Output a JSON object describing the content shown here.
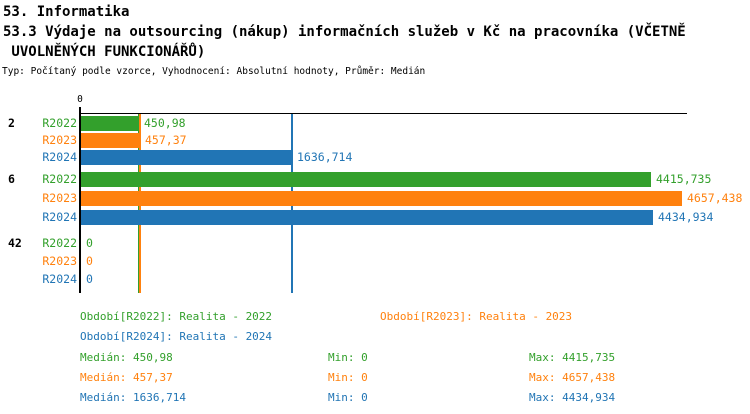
{
  "header": {
    "title_line1": "53. Informatika",
    "title_line2": "53.3 Výdaje na outsourcing (nákup) informačních služeb v Kč na pracovníka (VČETNĚ",
    "title_line3": " UVOLNĚNÝCH FUNKCIONÁŘŮ)",
    "subtitle": "Typ: Počítaný podle vzorce, Vyhodnocení: Absolutní hodnoty, Průměr: Medián"
  },
  "colors": {
    "series": {
      "R2022": "#33a02c",
      "R2023": "#ff810e",
      "R2024": "#2175b5"
    },
    "axis": "#000000"
  },
  "chart_data": {
    "type": "bar",
    "orientation": "horizontal",
    "title": "53.3 Výdaje na outsourcing (nákup) informačních služeb v Kč na pracovníka (VČETNĚ UVOLNĚNÝCH FUNKCIONÁŘŮ)",
    "xlim": [
      0,
      4657.438
    ],
    "axis": {
      "zero_label": "0"
    },
    "grid": false,
    "legend_position": "bottom",
    "groups": [
      {
        "label": "2",
        "bars": [
          {
            "series": "R2022",
            "value": 450.98,
            "display": "450,98"
          },
          {
            "series": "R2023",
            "value": 457.37,
            "display": "457,37"
          },
          {
            "series": "R2024",
            "value": 1636.714,
            "display": "1636,714"
          }
        ]
      },
      {
        "label": "6",
        "bars": [
          {
            "series": "R2022",
            "value": 4415.735,
            "display": "4415,735"
          },
          {
            "series": "R2023",
            "value": 4657.438,
            "display": "4657,438"
          },
          {
            "series": "R2024",
            "value": 4434.934,
            "display": "4434,934"
          }
        ]
      },
      {
        "label": "42",
        "bars": [
          {
            "series": "R2022",
            "value": 0,
            "display": "0"
          },
          {
            "series": "R2023",
            "value": 0,
            "display": "0"
          },
          {
            "series": "R2024",
            "value": 0,
            "display": "0"
          }
        ]
      }
    ],
    "median_lines": [
      {
        "series": "R2022",
        "value": 450.98
      },
      {
        "series": "R2023",
        "value": 457.37
      },
      {
        "series": "R2024",
        "value": 1636.714
      }
    ],
    "legend": [
      {
        "series": "R2022",
        "label": "Období[R2022]: Realita - 2022"
      },
      {
        "series": "R2023",
        "label": "Období[R2023]: Realita - 2023"
      },
      {
        "series": "R2024",
        "label": "Období[R2024]: Realita - 2024"
      }
    ],
    "stats": [
      {
        "series": "R2022",
        "median_label": "Medián: 450,98",
        "min_label": "Min: 0",
        "max_label": "Max: 4415,735"
      },
      {
        "series": "R2023",
        "median_label": "Medián: 457,37",
        "min_label": "Min: 0",
        "max_label": "Max: 4657,438"
      },
      {
        "series": "R2024",
        "median_label": "Medián: 1636,714",
        "min_label": "Min: 0",
        "max_label": "Max: 4434,934"
      }
    ]
  }
}
